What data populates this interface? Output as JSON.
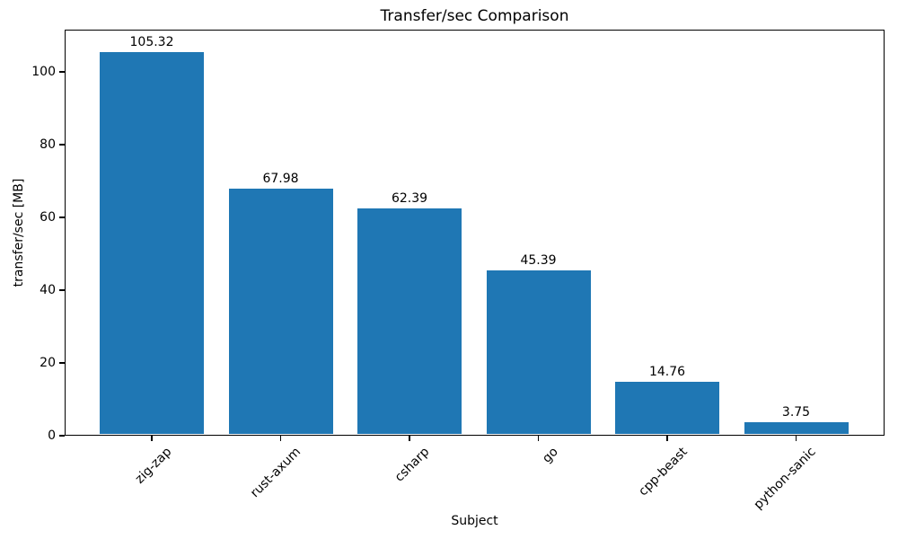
{
  "chart_data": {
    "type": "bar",
    "title": "Transfer/sec Comparison",
    "xlabel": "Subject",
    "ylabel": "transfer/sec [MB]",
    "categories": [
      "zig-zap",
      "rust-axum",
      "csharp",
      "go",
      "cpp-beast",
      "python-sanic"
    ],
    "values": [
      105.32,
      67.98,
      62.39,
      45.39,
      14.76,
      3.75
    ],
    "bar_labels": [
      "105.32",
      "67.98",
      "62.39",
      "45.39",
      "14.76",
      "3.75"
    ],
    "yticks": [
      0,
      20,
      40,
      60,
      80,
      100
    ],
    "ylim": [
      0,
      111.6
    ],
    "grid": false,
    "legend_position": "none",
    "bar_color": "#1f77b4",
    "spine_color": "#000000",
    "text_color": "#000000",
    "background_color": "#ffffff"
  }
}
